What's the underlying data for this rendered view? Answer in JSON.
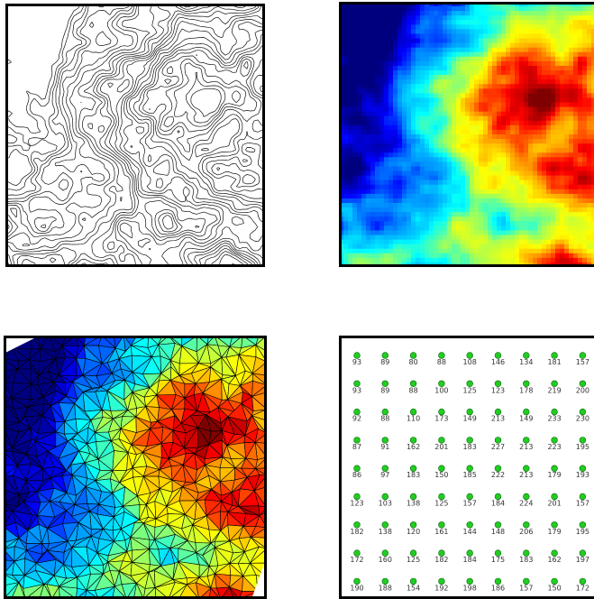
{
  "panels": {
    "contour": {
      "name": "contour map"
    },
    "heatmap": {
      "name": "elevation heatmap",
      "colors": [
        "#00007f",
        "#0000ff",
        "#0096ff",
        "#00ffff",
        "#96ff64",
        "#ffff00",
        "#ff9600",
        "#ff0000",
        "#7f0000"
      ]
    },
    "tin": {
      "name": "triangulated surface"
    },
    "grid": {
      "name": "sample point grid",
      "point_color": "#22cc22",
      "rows": [
        [
          "93",
          "89",
          "80",
          "88",
          "108",
          "146",
          "134",
          "181",
          "157"
        ],
        [
          "93",
          "89",
          "88",
          "100",
          "125",
          "123",
          "178",
          "219",
          "200"
        ],
        [
          "92",
          "88",
          "110",
          "173",
          "149",
          "213",
          "149",
          "233",
          "230"
        ],
        [
          "87",
          "91",
          "162",
          "201",
          "183",
          "227",
          "213",
          "223",
          "195"
        ],
        [
          "86",
          "97",
          "183",
          "150",
          "185",
          "222",
          "213",
          "179",
          "193"
        ],
        [
          "123",
          "103",
          "138",
          "125",
          "157",
          "184",
          "224",
          "201",
          "157"
        ],
        [
          "182",
          "138",
          "120",
          "161",
          "144",
          "148",
          "206",
          "179",
          "195"
        ],
        [
          "172",
          "160",
          "125",
          "182",
          "184",
          "175",
          "183",
          "162",
          "197"
        ],
        [
          "190",
          "188",
          "154",
          "192",
          "198",
          "186",
          "157",
          "150",
          "172"
        ]
      ]
    }
  }
}
